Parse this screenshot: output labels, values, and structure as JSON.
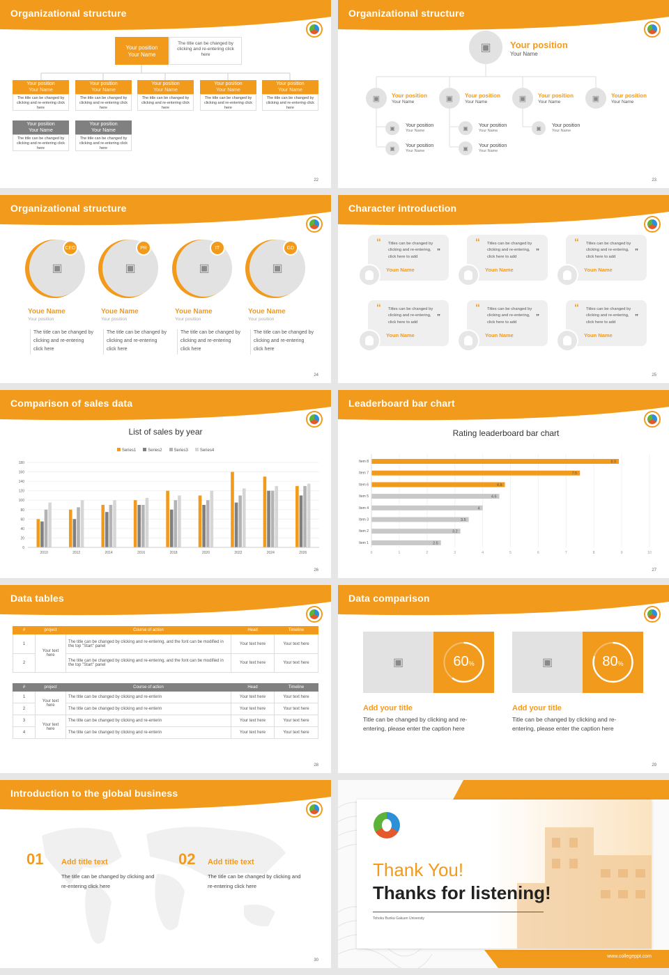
{
  "brand": {
    "accent": "#f29a1c",
    "gray": "#808080",
    "light_gray": "#e2e2e2"
  },
  "s22": {
    "title": "Organizational structure",
    "page": "22",
    "top": {
      "pos": "Your position",
      "name": "Your Name",
      "desc": "The title can be changed by clicking and re-entering click here"
    },
    "cards": [
      {
        "pos": "Your position",
        "name": "Your Name",
        "desc": "The title can be changed by clicking and re-entering click here"
      },
      {
        "pos": "Your position",
        "name": "Your Name",
        "desc": "The title can be changed by clicking and re-entering click here"
      },
      {
        "pos": "Your position",
        "name": "Your Name",
        "desc": "The title can be changed by clicking and re-entering click here"
      },
      {
        "pos": "Your position",
        "name": "Your Name",
        "desc": "The title can be changed by clicking and re-entering click here"
      },
      {
        "pos": "Your position",
        "name": "Your Name",
        "desc": "The title can be changed by clicking and re-entering click here"
      }
    ],
    "gray_cards": [
      {
        "pos": "Your position",
        "name": "Your Name",
        "desc": "The title can be changed by clicking and re-entering click here"
      },
      {
        "pos": "Your position",
        "name": "Your Name",
        "desc": "The title can be changed by clicking and re-entering click here"
      }
    ]
  },
  "s23": {
    "title": "Organizational structure",
    "page": "23",
    "top": {
      "pos": "Your position",
      "name": "Your Name"
    },
    "level2": [
      {
        "pos": "Your position",
        "name": "Your Name"
      },
      {
        "pos": "Your position",
        "name": "Your Name"
      },
      {
        "pos": "Your position",
        "name": "Your Name"
      },
      {
        "pos": "Your position",
        "name": "Your Name"
      }
    ],
    "level3": [
      {
        "pos": "Your position",
        "name": "Your Name"
      },
      {
        "pos": "Your position",
        "name": "Your Name"
      },
      {
        "pos": "Your position",
        "name": "Your Name"
      },
      {
        "pos": "Your position",
        "name": "Your Name"
      },
      {
        "pos": "Your position",
        "name": "Your Name"
      }
    ]
  },
  "s24": {
    "title": "Organizational structure",
    "page": "24",
    "people": [
      {
        "tag": "CEO",
        "name": "Youe Name",
        "pos": "Your position",
        "desc": "The title can be changed by clicking and re-entering click here"
      },
      {
        "tag": "PR",
        "name": "Youe Name",
        "pos": "Your position",
        "desc": "The title can be changed by clicking and re-entering click here"
      },
      {
        "tag": "IT",
        "name": "Youe Name",
        "pos": "Your position",
        "desc": "The title can be changed by clicking and re-entering click here"
      },
      {
        "tag": "GD",
        "name": "Youe Name",
        "pos": "Your position",
        "desc": "The title can be changed by clicking and re-entering click here"
      }
    ]
  },
  "s25": {
    "title": "Character introduction",
    "page": "25",
    "quote_open": "“",
    "quote_close": "”",
    "items": [
      {
        "text": "Titles can be changed by clicking and re-entering, click here to add",
        "name": "Youn Name"
      },
      {
        "text": "Titles can be changed by clicking and re-entering, click here to add",
        "name": "Youn Name"
      },
      {
        "text": "Titles can be changed by clicking and re-entering, click here to add",
        "name": "Youn Name"
      },
      {
        "text": "Titles can be changed by clicking and re-entering, click here to add",
        "name": "Youn Name"
      },
      {
        "text": "Titles can be changed by clicking and re-entering, click here to add",
        "name": "Youn Name"
      },
      {
        "text": "Titles can be changed by clicking and re-entering, click here to add",
        "name": "Youn Name"
      }
    ]
  },
  "s26": {
    "title": "Comparison of sales data",
    "page": "26",
    "chart_data": {
      "type": "bar",
      "title": "List of sales by year",
      "categories": [
        "2010",
        "2012",
        "2014",
        "2016",
        "2018",
        "2020",
        "2022",
        "2024",
        "2026"
      ],
      "ylim": [
        0,
        180
      ],
      "yticks": [
        "0",
        "20",
        "40",
        "60",
        "80",
        "100",
        "120",
        "140",
        "160",
        "180"
      ],
      "legend": "top",
      "series": [
        {
          "name": "Series1",
          "color": "#f29a1c",
          "values": [
            60,
            80,
            90,
            100,
            120,
            110,
            160,
            150,
            130
          ]
        },
        {
          "name": "Series2",
          "color": "#808080",
          "values": [
            55,
            60,
            75,
            90,
            80,
            90,
            95,
            120,
            110
          ]
        },
        {
          "name": "Series3",
          "color": "#b3b3b3",
          "values": [
            80,
            85,
            90,
            90,
            100,
            100,
            110,
            120,
            130
          ]
        },
        {
          "name": "Series4",
          "color": "#d6d6d6",
          "values": [
            95,
            100,
            100,
            105,
            110,
            120,
            125,
            130,
            135
          ]
        }
      ]
    }
  },
  "s27": {
    "title": "Leaderboard bar chart",
    "page": "27",
    "chart_data": {
      "type": "bar",
      "orientation": "horizontal",
      "title": "Rating leaderboard bar chart",
      "categories": [
        "Item 8",
        "Item 7",
        "Item 6",
        "Item 5",
        "Item 4",
        "Item 3",
        "Item 2",
        "Item 1"
      ],
      "values": [
        8.9,
        7.5,
        4.8,
        4.6,
        4,
        3.5,
        3.2,
        2.5
      ],
      "labels": [
        "8.9",
        "7.5",
        "4.8",
        "4.6",
        "4",
        "3.5",
        "3.2",
        "2.5"
      ],
      "xlim": [
        0,
        10
      ],
      "xticks": [
        "0",
        "1",
        "2",
        "3",
        "4",
        "5",
        "6",
        "7",
        "8",
        "9",
        "10"
      ],
      "highlight_count": 3
    }
  },
  "s28": {
    "title": "Data tables",
    "page": "28",
    "t1": {
      "headers": [
        "#",
        "project",
        "Course of action",
        "Head",
        "Timeline"
      ],
      "rows": [
        {
          "n": "1",
          "action": "The title can be changed by clicking and re-entering, and the font can be modified in the top \"Start\" panel",
          "head": "Your text here",
          "time": "Your text here"
        },
        {
          "n": "2",
          "action": "The title can be changed by clicking and re-entering, and the font can be modified in the top \"Start\" panel",
          "head": "Your text here",
          "time": "Your text here"
        }
      ],
      "project": "Your text here"
    },
    "t2": {
      "headers": [
        "#",
        "project",
        "Course of action",
        "Head",
        "Timeline"
      ],
      "rows": [
        {
          "n": "1",
          "action": "The title can be changed by clicking and re-enterin",
          "head": "Your text here",
          "time": "Your text here"
        },
        {
          "n": "2",
          "action": "The title can be changed by clicking and re-enterin",
          "head": "Your text here",
          "time": "Your text here"
        },
        {
          "n": "3",
          "action": "The title can be changed by clicking and re-enterin",
          "head": "Your text here",
          "time": "Your text here"
        },
        {
          "n": "4",
          "action": "The title can be changed by clicking and re-enterin",
          "head": "Your text here",
          "time": "Your text here"
        }
      ],
      "project_a": "Your text here",
      "project_b": "Your text here"
    }
  },
  "s29": {
    "title": "Data comparison",
    "page": "29",
    "items": [
      {
        "pct": "60",
        "unit": "%",
        "progress": 0.6,
        "title": "Add your title",
        "desc": "Title can be changed by clicking and re-entering, please enter the caption here"
      },
      {
        "pct": "80",
        "unit": "%",
        "progress": 0.8,
        "title": "Add your title",
        "desc": "Title can be changed by clicking and re-entering, please enter the caption here"
      }
    ]
  },
  "s30": {
    "title": "Introduction to the global business",
    "page": "30",
    "items": [
      {
        "num": "01",
        "title": "Add title text",
        "desc": "The title can be changed by clicking and re-entering click here"
      },
      {
        "num": "02",
        "title": "Add title text",
        "desc": "The title can be changed by clicking and re-entering click here"
      }
    ]
  },
  "s31": {
    "thank": "Thank You!",
    "thanks": "Thanks for listening!",
    "university": "Tohoku Bunka Gakuen University",
    "site": "www.collegeppt.com"
  }
}
